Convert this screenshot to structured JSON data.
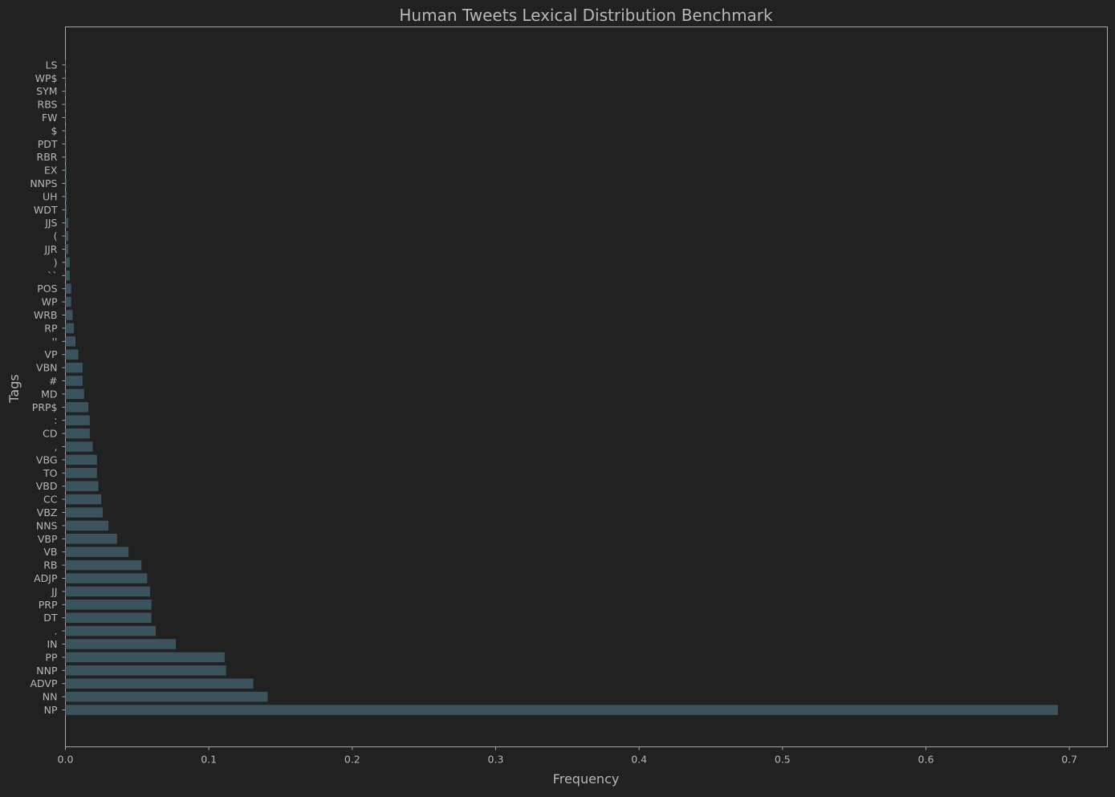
{
  "chart_data": {
    "type": "bar",
    "orientation": "horizontal",
    "title": "Human Tweets Lexical Distribution Benchmark",
    "xlabel": "Frequency",
    "ylabel": "Tags",
    "xlim": [
      0,
      0.7265
    ],
    "xticks": [
      0.0,
      0.1,
      0.2,
      0.3,
      0.4,
      0.5,
      0.6,
      0.7
    ],
    "xtick_labels": [
      "0.0",
      "0.1",
      "0.2",
      "0.3",
      "0.4",
      "0.5",
      "0.6",
      "0.7"
    ],
    "grid": false,
    "categories": [
      "NP",
      "NN",
      "ADVP",
      "NNP",
      "PP",
      "IN",
      ".",
      "DT",
      "PRP",
      "JJ",
      "ADJP",
      "RB",
      "VB",
      "VBP",
      "NNS",
      "VBZ",
      "CC",
      "VBD",
      "TO",
      "VBG",
      ",",
      "CD",
      ":",
      "PRP$",
      "MD",
      "#",
      "VBN",
      "VP",
      "''",
      "RP",
      "WRB",
      "WP",
      "POS",
      "``",
      ")",
      "JJR",
      "(",
      "JJS",
      "WDT",
      "UH",
      "NNPS",
      "EX",
      "RBR",
      "PDT",
      "$",
      "FW",
      "RBS",
      "SYM",
      "WP$",
      "LS"
    ],
    "values": [
      0.692,
      0.141,
      0.131,
      0.112,
      0.111,
      0.077,
      0.063,
      0.06,
      0.06,
      0.059,
      0.057,
      0.053,
      0.044,
      0.036,
      0.03,
      0.026,
      0.025,
      0.023,
      0.022,
      0.022,
      0.019,
      0.017,
      0.017,
      0.016,
      0.013,
      0.012,
      0.012,
      0.009,
      0.007,
      0.006,
      0.005,
      0.004,
      0.004,
      0.003,
      0.003,
      0.002,
      0.002,
      0.002,
      0.001,
      0.001,
      0.0008,
      0.0007,
      0.0006,
      0.0005,
      0.0004,
      0.0003,
      0.0003,
      0.0002,
      0.0002,
      0.0001
    ],
    "bar_color": "#3b535d",
    "background_color": "#212121",
    "text_color": "#b8b8b8",
    "frame_color": "#a8a8a8"
  }
}
